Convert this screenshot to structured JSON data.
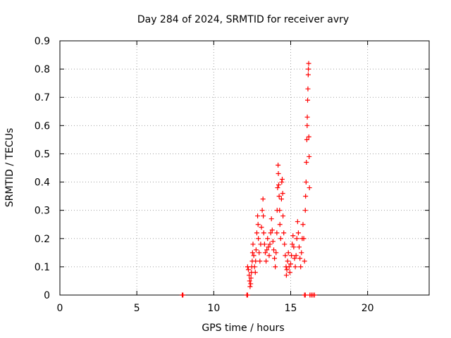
{
  "chart_data": {
    "type": "scatter",
    "title": "Day 284 of 2024, SRMTID for receiver avry",
    "xlabel": "GPS time / hours",
    "ylabel": "SRMTID / TECUs",
    "xlim": [
      0,
      24
    ],
    "ylim": [
      0,
      0.9
    ],
    "xticks": [
      0,
      5,
      10,
      15,
      20
    ],
    "yticks": [
      0,
      0.1,
      0.2,
      0.3,
      0.4,
      0.5,
      0.6,
      0.7,
      0.8,
      0.9
    ],
    "ytick_labels": [
      "0",
      "0.1",
      "0.2",
      "0.3",
      "0.4",
      "0.5",
      "0.6",
      "0.7",
      "0.8",
      "0.9"
    ],
    "xtick_labels": [
      "0",
      "5",
      "10",
      "15",
      "20"
    ],
    "grid": true,
    "marker": "+",
    "color": "#ff0000",
    "series": [
      {
        "name": "SRMTID",
        "points": [
          [
            7.95,
            0
          ],
          [
            8.0,
            0
          ],
          [
            12.15,
            0
          ],
          [
            12.2,
            0
          ],
          [
            15.9,
            0
          ],
          [
            15.95,
            0
          ],
          [
            16.25,
            0
          ],
          [
            16.35,
            0
          ],
          [
            16.45,
            0
          ],
          [
            16.55,
            0
          ],
          [
            12.2,
            0.1
          ],
          [
            12.25,
            0.09
          ],
          [
            12.3,
            0.07
          ],
          [
            12.33,
            0.05
          ],
          [
            12.36,
            0.03
          ],
          [
            12.4,
            0.04
          ],
          [
            12.42,
            0.06
          ],
          [
            12.45,
            0.08
          ],
          [
            12.47,
            0.1
          ],
          [
            12.5,
            0.12
          ],
          [
            12.52,
            0.15
          ],
          [
            12.55,
            0.18
          ],
          [
            12.6,
            0.14
          ],
          [
            12.65,
            0.1
          ],
          [
            12.7,
            0.08
          ],
          [
            12.72,
            0.12
          ],
          [
            12.75,
            0.16
          ],
          [
            12.8,
            0.22
          ],
          [
            12.85,
            0.28
          ],
          [
            12.88,
            0.25
          ],
          [
            12.9,
            0.2
          ],
          [
            12.95,
            0.15
          ],
          [
            13.0,
            0.12
          ],
          [
            13.05,
            0.18
          ],
          [
            13.1,
            0.24
          ],
          [
            13.15,
            0.3
          ],
          [
            13.2,
            0.34
          ],
          [
            13.22,
            0.28
          ],
          [
            13.25,
            0.22
          ],
          [
            13.3,
            0.18
          ],
          [
            13.35,
            0.15
          ],
          [
            13.4,
            0.12
          ],
          [
            13.45,
            0.16
          ],
          [
            13.5,
            0.2
          ],
          [
            13.55,
            0.17
          ],
          [
            13.6,
            0.14
          ],
          [
            13.65,
            0.18
          ],
          [
            13.7,
            0.22
          ],
          [
            13.75,
            0.27
          ],
          [
            13.8,
            0.23
          ],
          [
            13.85,
            0.19
          ],
          [
            13.9,
            0.16
          ],
          [
            13.95,
            0.13
          ],
          [
            14.0,
            0.1
          ],
          [
            14.05,
            0.15
          ],
          [
            14.1,
            0.22
          ],
          [
            14.12,
            0.3
          ],
          [
            14.15,
            0.38
          ],
          [
            14.18,
            0.46
          ],
          [
            14.2,
            0.43
          ],
          [
            14.22,
            0.39
          ],
          [
            14.25,
            0.35
          ],
          [
            14.28,
            0.3
          ],
          [
            14.3,
            0.25
          ],
          [
            14.35,
            0.2
          ],
          [
            14.4,
            0.34
          ],
          [
            14.42,
            0.4
          ],
          [
            14.45,
            0.41
          ],
          [
            14.48,
            0.36
          ],
          [
            14.5,
            0.28
          ],
          [
            14.55,
            0.22
          ],
          [
            14.6,
            0.18
          ],
          [
            14.65,
            0.14
          ],
          [
            14.7,
            0.1
          ],
          [
            14.72,
            0.07
          ],
          [
            14.75,
            0.09
          ],
          [
            14.8,
            0.12
          ],
          [
            14.85,
            0.15
          ],
          [
            14.9,
            0.1
          ],
          [
            14.95,
            0.08
          ],
          [
            15.0,
            0.11
          ],
          [
            15.05,
            0.14
          ],
          [
            15.1,
            0.18
          ],
          [
            15.15,
            0.21
          ],
          [
            15.2,
            0.17
          ],
          [
            15.25,
            0.13
          ],
          [
            15.3,
            0.1
          ],
          [
            15.35,
            0.14
          ],
          [
            15.4,
            0.2
          ],
          [
            15.45,
            0.26
          ],
          [
            15.5,
            0.22
          ],
          [
            15.55,
            0.17
          ],
          [
            15.6,
            0.13
          ],
          [
            15.65,
            0.1
          ],
          [
            15.7,
            0.15
          ],
          [
            15.75,
            0.2
          ],
          [
            15.8,
            0.25
          ],
          [
            15.85,
            0.2
          ],
          [
            15.9,
            0.12
          ],
          [
            15.95,
            0.3
          ],
          [
            15.97,
            0.35
          ],
          [
            16.0,
            0.4
          ],
          [
            16.02,
            0.47
          ],
          [
            16.05,
            0.55
          ],
          [
            16.07,
            0.6
          ],
          [
            16.08,
            0.63
          ],
          [
            16.1,
            0.69
          ],
          [
            16.12,
            0.73
          ],
          [
            16.14,
            0.78
          ],
          [
            16.15,
            0.8
          ],
          [
            16.17,
            0.82
          ],
          [
            16.18,
            0.56
          ],
          [
            16.2,
            0.49
          ],
          [
            16.22,
            0.38
          ]
        ]
      }
    ]
  }
}
